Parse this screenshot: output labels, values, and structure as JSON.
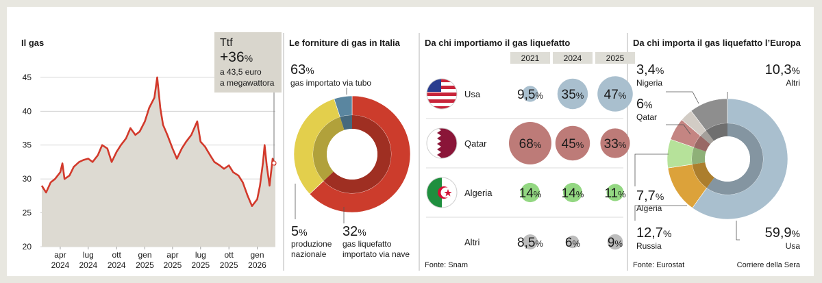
{
  "chart_data": [
    {
      "type": "area",
      "title": "Il gas",
      "ylim": [
        20,
        46
      ],
      "yticks": [
        20,
        25,
        30,
        35,
        40,
        45
      ],
      "x_tick_labels": [
        {
          "month": "apr",
          "year": "2024"
        },
        {
          "month": "lug",
          "year": "2024"
        },
        {
          "month": "ott",
          "year": "2024"
        },
        {
          "month": "gen",
          "year": "2025"
        },
        {
          "month": "apr",
          "year": "2025"
        },
        {
          "month": "lug",
          "year": "2025"
        },
        {
          "month": "ott",
          "year": "2025"
        },
        {
          "month": "gen",
          "year": "2026"
        }
      ],
      "x_range": [
        "2024-02",
        "2026-03"
      ],
      "series": [
        {
          "name": "Ttf",
          "points": [
            [
              "2024-02-01",
              29.0
            ],
            [
              "2024-02-15",
              28.0
            ],
            [
              "2024-03-01",
              29.5
            ],
            [
              "2024-03-15",
              30.0
            ],
            [
              "2024-04-01",
              31.0
            ],
            [
              "2024-04-08",
              32.3
            ],
            [
              "2024-04-15",
              30.0
            ],
            [
              "2024-05-01",
              30.5
            ],
            [
              "2024-05-15",
              31.8
            ],
            [
              "2024-06-01",
              32.5
            ],
            [
              "2024-06-15",
              32.8
            ],
            [
              "2024-07-01",
              33.0
            ],
            [
              "2024-07-15",
              32.5
            ],
            [
              "2024-08-01",
              33.5
            ],
            [
              "2024-08-15",
              35.0
            ],
            [
              "2024-09-01",
              34.5
            ],
            [
              "2024-09-15",
              32.5
            ],
            [
              "2024-10-01",
              34.0
            ],
            [
              "2024-10-15",
              35.0
            ],
            [
              "2024-11-01",
              36.0
            ],
            [
              "2024-11-15",
              37.5
            ],
            [
              "2024-12-01",
              36.5
            ],
            [
              "2024-12-15",
              37.0
            ],
            [
              "2025-01-01",
              38.5
            ],
            [
              "2025-01-15",
              40.5
            ],
            [
              "2025-02-01",
              42.0
            ],
            [
              "2025-02-10",
              45.0
            ],
            [
              "2025-02-20",
              40.5
            ],
            [
              "2025-03-01",
              38.0
            ],
            [
              "2025-03-15",
              36.5
            ],
            [
              "2025-04-01",
              34.5
            ],
            [
              "2025-04-15",
              33.0
            ],
            [
              "2025-05-01",
              34.5
            ],
            [
              "2025-05-15",
              35.5
            ],
            [
              "2025-06-01",
              36.5
            ],
            [
              "2025-06-20",
              38.5
            ],
            [
              "2025-07-01",
              35.5
            ],
            [
              "2025-07-15",
              34.8
            ],
            [
              "2025-08-01",
              33.5
            ],
            [
              "2025-08-15",
              32.5
            ],
            [
              "2025-09-01",
              32.0
            ],
            [
              "2025-09-15",
              31.5
            ],
            [
              "2025-10-01",
              32.0
            ],
            [
              "2025-10-15",
              31.0
            ],
            [
              "2025-11-01",
              30.5
            ],
            [
              "2025-11-15",
              29.5
            ],
            [
              "2025-12-01",
              27.5
            ],
            [
              "2025-12-15",
              26.0
            ],
            [
              "2026-01-01",
              27.0
            ],
            [
              "2026-01-10",
              29.0
            ],
            [
              "2026-01-20",
              32.5
            ],
            [
              "2026-01-25",
              35.0
            ],
            [
              "2026-02-01",
              32.0
            ],
            [
              "2026-02-10",
              29.0
            ],
            [
              "2026-02-20",
              33.0
            ],
            [
              "2026-03-01",
              32.0
            ]
          ]
        }
      ],
      "callout": {
        "label": "Ttf",
        "change": "+36",
        "unit": "%",
        "line1": "a 43,5 euro",
        "line2": "a megawattora"
      }
    },
    {
      "type": "pie",
      "title": "Le forniture di gas in Italia",
      "slices": [
        {
          "value": 63,
          "value_text": "63",
          "label": "gas importato via tubo",
          "color": "#cc3c2c"
        },
        {
          "value": 32,
          "value_text": "32",
          "label_lines": [
            "gas liquefatto",
            "importato via nave"
          ],
          "color": "#e3cf4c"
        },
        {
          "value": 5,
          "value_text": "5",
          "label_lines": [
            "produzione",
            "nazionale"
          ],
          "color": "#5a86a0"
        }
      ]
    },
    {
      "type": "table",
      "title": "Da chi importiamo il gas liquefatto",
      "columns": [
        "2021",
        "2024",
        "2025"
      ],
      "rows": [
        {
          "name": "Usa",
          "values": [
            9.5,
            35,
            47
          ],
          "labels": [
            "9,5",
            "35",
            "47"
          ],
          "color": "#a9bfce"
        },
        {
          "name": "Qatar",
          "values": [
            68,
            45,
            33
          ],
          "labels": [
            "68",
            "45",
            "33"
          ],
          "color": "#bd7b78"
        },
        {
          "name": "Algeria",
          "values": [
            14,
            14,
            11
          ],
          "labels": [
            "14",
            "14",
            "11"
          ],
          "color": "#93d782"
        },
        {
          "name": "Altri",
          "values": [
            8.5,
            6,
            9
          ],
          "labels": [
            "8,5",
            "6",
            "9"
          ],
          "color": "#bdbdbd"
        }
      ],
      "source": "Fonte: Snam"
    },
    {
      "type": "pie",
      "title": "Da chi importa il gas liquefatto l’Europa",
      "slices": [
        {
          "value": 59.9,
          "value_text": "59,9",
          "label": "Usa",
          "color": "#a9bfce"
        },
        {
          "value": 12.7,
          "value_text": "12,7",
          "label": "Russia",
          "color": "#dca23a"
        },
        {
          "value": 7.7,
          "value_text": "7,7",
          "label": "Algeria",
          "color": "#b6e29a"
        },
        {
          "value": 6,
          "value_text": "6",
          "label": "Qatar",
          "color": "#c48582"
        },
        {
          "value": 3.4,
          "value_text": "3,4",
          "label": "Nigeria",
          "color": "#d2ccc5"
        },
        {
          "value": 10.3,
          "value_text": "10,3",
          "label": "Altri",
          "color": "#8e8e8e"
        }
      ],
      "source": "Fonte: Eurostat"
    }
  ],
  "percent_sign": "%",
  "credit": "Corriere della Sera"
}
